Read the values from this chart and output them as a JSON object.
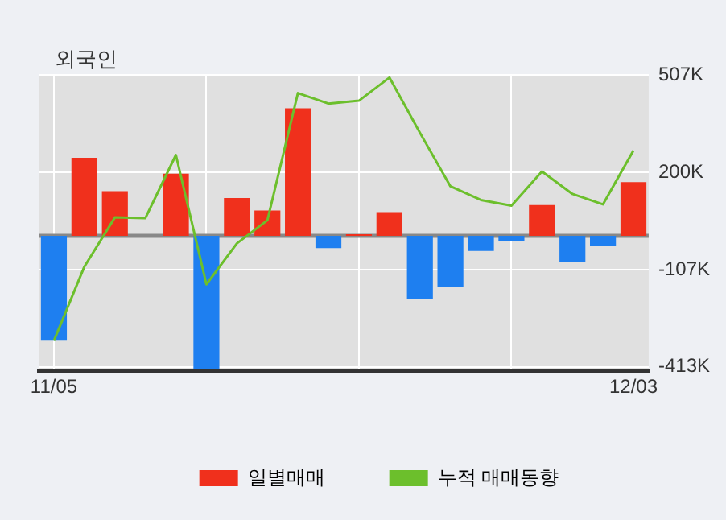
{
  "chart_data": {
    "type": "bar",
    "title": "외국인",
    "categories": [
      "11/05",
      null,
      null,
      null,
      null,
      null,
      null,
      null,
      null,
      null,
      null,
      null,
      null,
      null,
      null,
      null,
      null,
      null,
      null,
      "12/03"
    ],
    "series": [
      {
        "name": "일별매매",
        "colors": [
          "#1e7ff0",
          "#f0301c",
          "#f0301c",
          "#f0301c",
          "#f0301c",
          "#1e7ff0",
          "#f0301c",
          "#f0301c",
          "#f0301c",
          "#1e7ff0",
          "#f0301c",
          "#f0301c",
          "#1e7ff0",
          "#1e7ff0",
          "#1e7ff0",
          "#1e7ff0",
          "#f0301c",
          "#1e7ff0",
          "#1e7ff0",
          "#f0301c"
        ],
        "values": [
          -331,
          246,
          141,
          0,
          196,
          -419,
          119,
          80,
          402,
          -39,
          5,
          75,
          -199,
          -162,
          -48,
          -17,
          97,
          -83,
          -33,
          169
        ]
      },
      {
        "name": "누적 매매동향",
        "type": "line",
        "color": "#6cbf2c",
        "values": [
          -331,
          -97,
          58,
          56,
          255,
          -153,
          -24,
          49,
          450,
          417,
          426,
          499,
          325,
          156,
          113,
          95,
          203,
          132,
          99,
          269
        ]
      }
    ],
    "ylim": [
      -427,
      510
    ],
    "yticks": [
      {
        "value": 507,
        "label": "507K"
      },
      {
        "value": 200,
        "label": "200K"
      },
      {
        "value": -107,
        "label": "-107K"
      },
      {
        "value": -413,
        "label": "-413K"
      }
    ],
    "grid": true,
    "legend": "bottom",
    "marker": "none"
  }
}
